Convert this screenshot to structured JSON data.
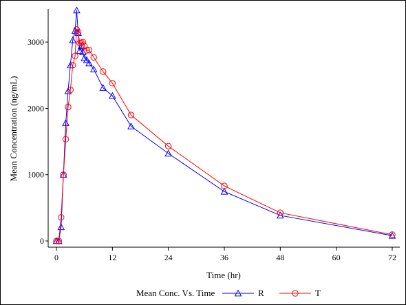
{
  "chart_data": {
    "type": "line",
    "title": "",
    "xlabel": "Time (hr)",
    "ylabel": "Mean Concentration (ng/mL)",
    "xlim": [
      0,
      72
    ],
    "ylim": [
      0,
      3500
    ],
    "xticks": [
      0,
      12,
      24,
      36,
      48,
      60,
      72
    ],
    "yticks": [
      0,
      1000,
      2000,
      3000
    ],
    "grid": false,
    "legend": {
      "position": "bottom",
      "title": "Mean Conc. Vs. Time"
    },
    "series": [
      {
        "name": "R",
        "color": "#0000ff",
        "marker": "triangle",
        "points": [
          [
            0,
            0
          ],
          [
            0.5,
            0
          ],
          [
            1,
            210
          ],
          [
            1.5,
            1000
          ],
          [
            2,
            1780
          ],
          [
            2.5,
            2260
          ],
          [
            3,
            2650
          ],
          [
            3.5,
            3030
          ],
          [
            4,
            3170
          ],
          [
            4.33,
            3480
          ],
          [
            4.67,
            3140
          ],
          [
            5,
            2870
          ],
          [
            5.33,
            2940
          ],
          [
            5.67,
            2850
          ],
          [
            6,
            2760
          ],
          [
            6.5,
            2730
          ],
          [
            7,
            2680
          ],
          [
            8,
            2590
          ],
          [
            10,
            2310
          ],
          [
            12,
            2190
          ],
          [
            16,
            1730
          ],
          [
            24,
            1320
          ],
          [
            36,
            745
          ],
          [
            48,
            385
          ],
          [
            72,
            80
          ]
        ]
      },
      {
        "name": "T",
        "color": "#ff0000",
        "marker": "circle",
        "points": [
          [
            0,
            0
          ],
          [
            0.5,
            0
          ],
          [
            1,
            355
          ],
          [
            1.5,
            1000
          ],
          [
            2,
            1535
          ],
          [
            2.5,
            2020
          ],
          [
            3,
            2280
          ],
          [
            3.5,
            2650
          ],
          [
            4,
            2790
          ],
          [
            4.33,
            3190
          ],
          [
            4.67,
            3150
          ],
          [
            5,
            2985
          ],
          [
            5.33,
            2990
          ],
          [
            5.67,
            3000
          ],
          [
            6,
            2940
          ],
          [
            6.5,
            2875
          ],
          [
            7,
            2880
          ],
          [
            8,
            2770
          ],
          [
            10,
            2555
          ],
          [
            12,
            2380
          ],
          [
            16,
            1900
          ],
          [
            24,
            1430
          ],
          [
            36,
            830
          ],
          [
            48,
            425
          ],
          [
            72,
            95
          ]
        ]
      }
    ]
  }
}
